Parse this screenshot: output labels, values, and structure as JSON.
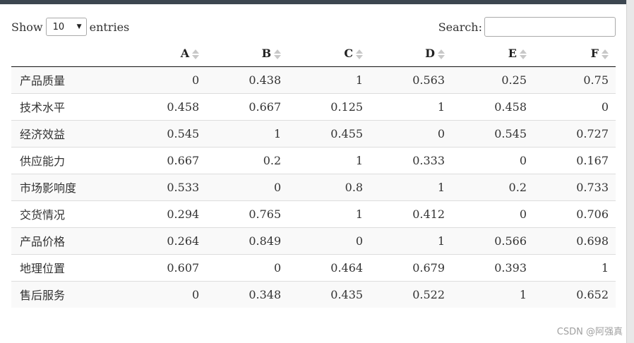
{
  "length_menu": {
    "prefix": "Show",
    "selected": "10",
    "suffix": "entries"
  },
  "search": {
    "label": "Search:",
    "value": ""
  },
  "table": {
    "columns": [
      "",
      "A",
      "B",
      "C",
      "D",
      "E",
      "F"
    ],
    "rows": [
      [
        "产品质量",
        "0",
        "0.438",
        "1",
        "0.563",
        "0.25",
        "0.75"
      ],
      [
        "技术水平",
        "0.458",
        "0.667",
        "0.125",
        "1",
        "0.458",
        "0"
      ],
      [
        "经济效益",
        "0.545",
        "1",
        "0.455",
        "0",
        "0.545",
        "0.727"
      ],
      [
        "供应能力",
        "0.667",
        "0.2",
        "1",
        "0.333",
        "0",
        "0.167"
      ],
      [
        "市场影响度",
        "0.533",
        "0",
        "0.8",
        "1",
        "0.2",
        "0.733"
      ],
      [
        "交货情况",
        "0.294",
        "0.765",
        "1",
        "0.412",
        "0",
        "0.706"
      ],
      [
        "产品价格",
        "0.264",
        "0.849",
        "0",
        "1",
        "0.566",
        "0.698"
      ],
      [
        "地理位置",
        "0.607",
        "0",
        "0.464",
        "0.679",
        "0.393",
        "1"
      ],
      [
        "售后服务",
        "0",
        "0.348",
        "0.435",
        "0.522",
        "1",
        "0.652"
      ]
    ]
  },
  "watermark": "CSDN @阿强真"
}
